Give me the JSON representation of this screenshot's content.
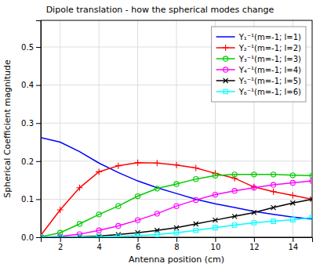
{
  "chart_data": {
    "type": "line",
    "title": "Dipole translation - how the spherical modes change",
    "xlabel": "Antenna position (cm)",
    "ylabel": "Spherical Coefficient magnitude",
    "x": [
      1,
      2,
      3,
      4,
      5,
      6,
      7,
      8,
      9,
      10,
      11,
      12,
      13,
      14,
      15
    ],
    "xlim": [
      1,
      15
    ],
    "ylim": [
      0,
      0.57
    ],
    "xticks": [
      2,
      4,
      6,
      8,
      10,
      12,
      14
    ],
    "yticks": [
      {
        "value": 0,
        "label": "0.0"
      },
      0.1,
      0.2,
      0.3,
      0.4,
      0.5
    ],
    "grid": true,
    "legend": "upper right",
    "series": [
      {
        "name": "Y₁⁻¹(m=-1; l=1)",
        "color": "blue",
        "marker": "none",
        "line_style": "solid",
        "values": [
          0.262,
          0.25,
          0.225,
          0.195,
          0.17,
          0.148,
          0.13,
          0.115,
          0.1,
          0.088,
          0.078,
          0.068,
          0.06,
          0.053,
          0.048
        ]
      },
      {
        "name": "Y₂⁻¹(m=-1; l=2)",
        "color": "red",
        "marker": "plus",
        "line_style": "solid",
        "values": [
          0.005,
          0.072,
          0.13,
          0.172,
          0.188,
          0.196,
          0.195,
          0.19,
          0.182,
          0.168,
          0.155,
          0.132,
          0.12,
          0.11,
          0.1
        ]
      },
      {
        "name": "Y₃⁻¹(m=-1; l=3)",
        "color": "#00cc00",
        "marker": "circle",
        "line_style": "solid",
        "values": [
          0.001,
          0.012,
          0.035,
          0.06,
          0.082,
          0.108,
          0.128,
          0.14,
          0.153,
          0.162,
          0.165,
          0.165,
          0.165,
          0.163,
          0.162
        ]
      },
      {
        "name": "Y₄⁻¹(m=-1; l=4)",
        "color": "magenta",
        "marker": "circle",
        "line_style": "solid",
        "values": [
          0.0,
          0.002,
          0.008,
          0.018,
          0.03,
          0.045,
          0.062,
          0.082,
          0.098,
          0.112,
          0.122,
          0.13,
          0.138,
          0.143,
          0.148
        ]
      },
      {
        "name": "Y₅⁻¹(m=-1; l=5)",
        "color": "black",
        "marker": "x",
        "line_style": "solid",
        "values": [
          0.0,
          0.0,
          0.001,
          0.003,
          0.007,
          0.012,
          0.018,
          0.025,
          0.035,
          0.045,
          0.055,
          0.065,
          0.078,
          0.09,
          0.1
        ]
      },
      {
        "name": "Y₆⁻¹(m=-1; l=6)",
        "color": "cyan",
        "marker": "square",
        "line_style": "solid",
        "values": [
          0.0,
          0.0,
          0.0,
          0.001,
          0.002,
          0.004,
          0.007,
          0.012,
          0.018,
          0.025,
          0.032,
          0.038,
          0.042,
          0.046,
          0.052
        ]
      }
    ]
  }
}
